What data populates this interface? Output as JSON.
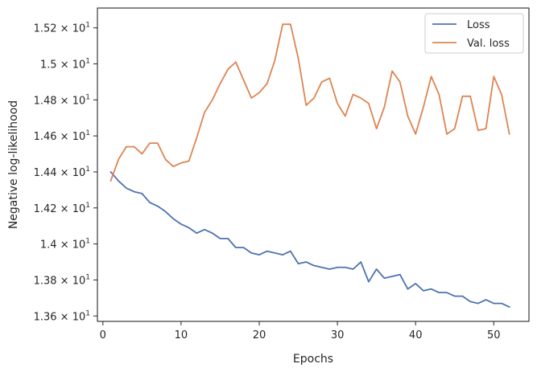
{
  "chart_data": {
    "type": "line",
    "xlabel": "Epochs",
    "ylabel": "Negative log-likelihood",
    "xlim": [
      -0.7,
      54.5
    ],
    "ylim": [
      13.57,
      15.31
    ],
    "x_ticks": [
      0,
      10,
      20,
      30,
      40,
      50
    ],
    "y_ticks": [
      {
        "value": 13.6,
        "mantissa": "1.36"
      },
      {
        "value": 13.8,
        "mantissa": "1.38"
      },
      {
        "value": 14.0,
        "mantissa": "1.4"
      },
      {
        "value": 14.2,
        "mantissa": "1.42"
      },
      {
        "value": 14.4,
        "mantissa": "1.44"
      },
      {
        "value": 14.6,
        "mantissa": "1.46"
      },
      {
        "value": 14.8,
        "mantissa": "1.48"
      },
      {
        "value": 15.0,
        "mantissa": "1.5"
      },
      {
        "value": 15.2,
        "mantissa": "1.52"
      }
    ],
    "y_tick_suffix": "× 10",
    "y_tick_exponent": "1",
    "grid": false,
    "legend_position": "top-right",
    "x": [
      1,
      2,
      3,
      4,
      5,
      6,
      7,
      8,
      9,
      10,
      11,
      12,
      13,
      14,
      15,
      16,
      17,
      18,
      19,
      20,
      21,
      22,
      23,
      24,
      25,
      26,
      27,
      28,
      29,
      30,
      31,
      32,
      33,
      34,
      35,
      36,
      37,
      38,
      39,
      40,
      41,
      42,
      43,
      44,
      45,
      46,
      47,
      48,
      49,
      50,
      51,
      52
    ],
    "series": [
      {
        "name": "Loss",
        "color": "#4c72b0",
        "values": [
          14.4,
          14.35,
          14.31,
          14.29,
          14.28,
          14.23,
          14.21,
          14.18,
          14.14,
          14.11,
          14.09,
          14.06,
          14.08,
          14.06,
          14.03,
          14.03,
          13.98,
          13.98,
          13.95,
          13.94,
          13.96,
          13.95,
          13.94,
          13.96,
          13.89,
          13.9,
          13.88,
          13.87,
          13.86,
          13.87,
          13.87,
          13.86,
          13.9,
          13.79,
          13.86,
          13.81,
          13.82,
          13.83,
          13.75,
          13.78,
          13.74,
          13.75,
          13.73,
          13.73,
          13.71,
          13.71,
          13.68,
          13.67,
          13.69,
          13.67,
          13.67,
          13.65
        ]
      },
      {
        "name": "Val. loss",
        "color": "#dd8452",
        "values": [
          14.35,
          14.47,
          14.54,
          14.54,
          14.5,
          14.56,
          14.56,
          14.47,
          14.43,
          14.45,
          14.46,
          14.59,
          14.73,
          14.8,
          14.89,
          14.97,
          15.01,
          14.91,
          14.81,
          14.84,
          14.89,
          15.02,
          15.22,
          15.22,
          15.03,
          14.77,
          14.81,
          14.9,
          14.92,
          14.78,
          14.71,
          14.83,
          14.81,
          14.78,
          14.64,
          14.76,
          14.96,
          14.9,
          14.71,
          14.61,
          14.76,
          14.93,
          14.83,
          14.61,
          14.64,
          14.82,
          14.82,
          14.63,
          14.64,
          14.93,
          14.83,
          14.61
        ]
      }
    ]
  }
}
